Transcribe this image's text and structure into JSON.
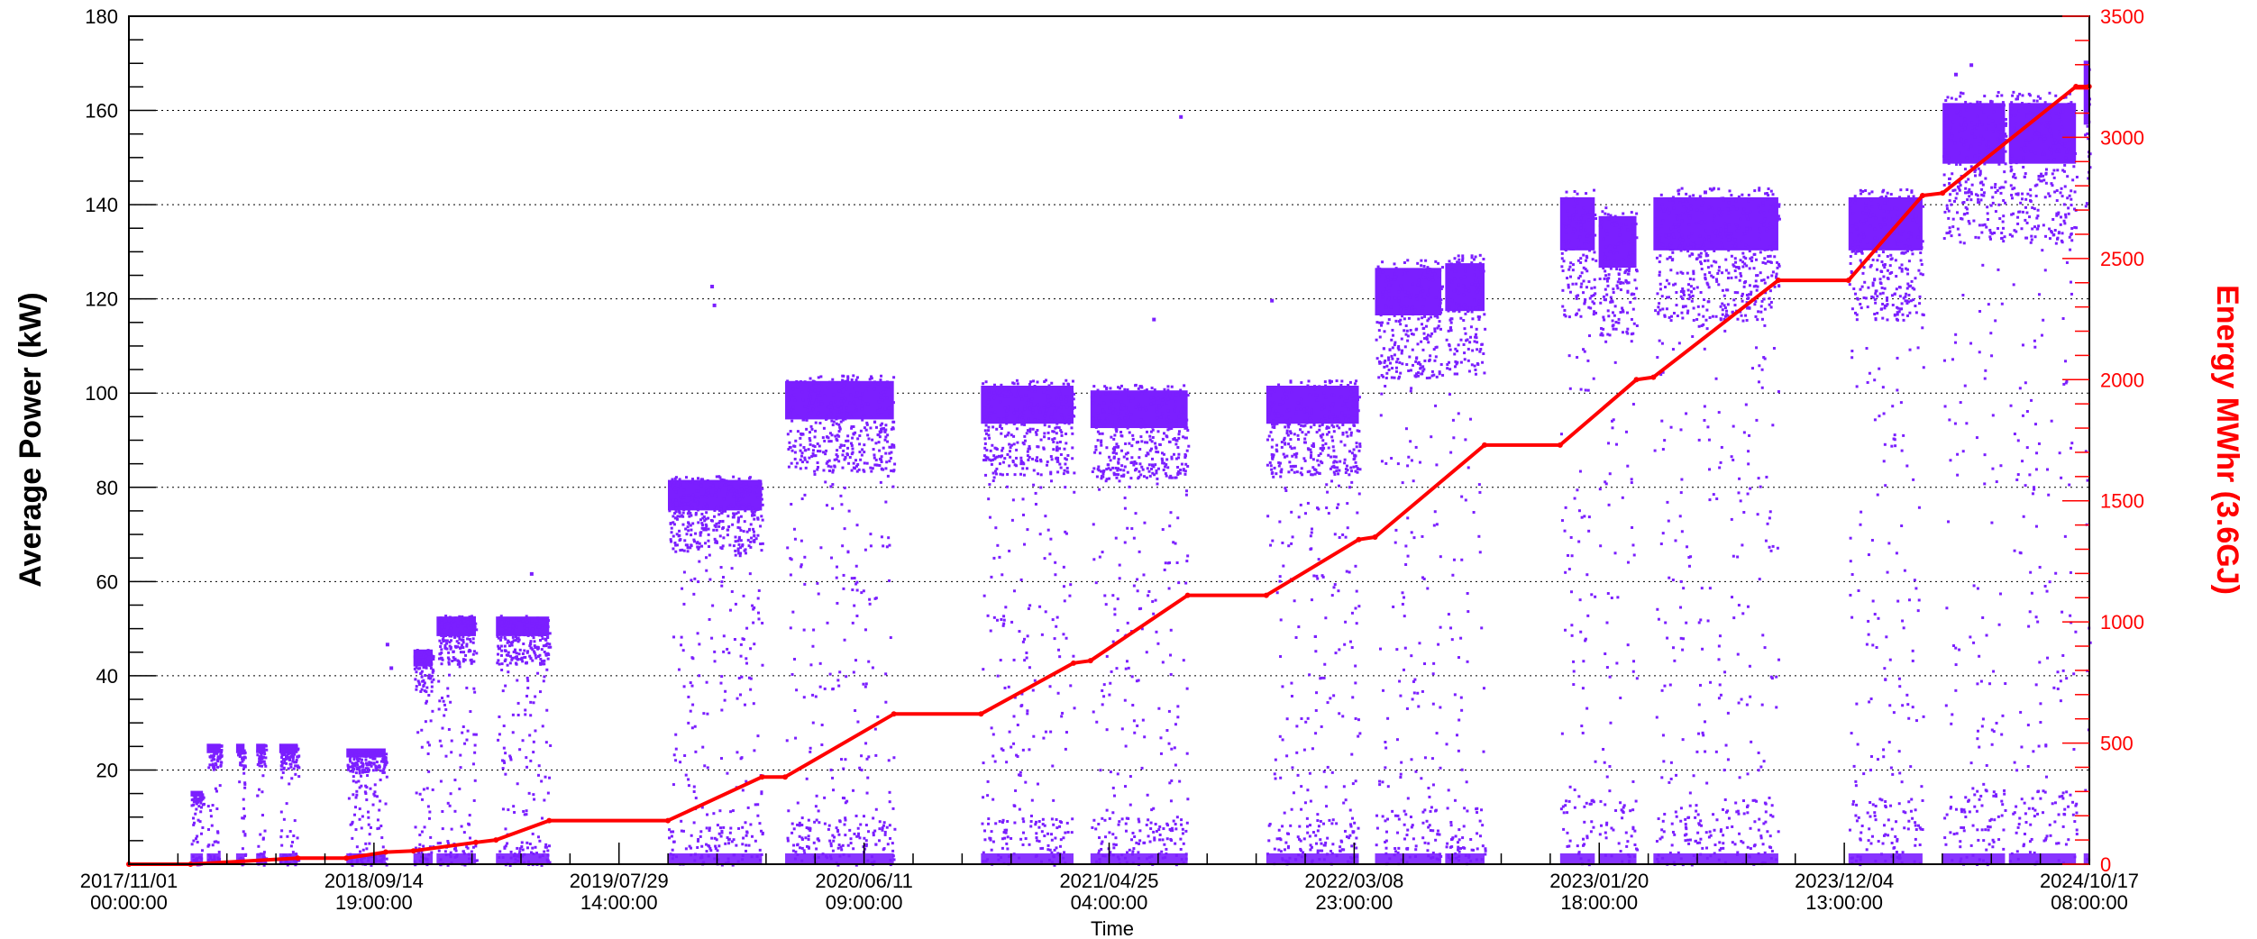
{
  "chart_data": {
    "type": "scatter",
    "title": "",
    "xlabel": "Time",
    "ylabel": "Average Power (kW)",
    "y2label": "Energy MWhr (3.6GJ)",
    "xlim": [
      "2017-11-01 00:00",
      "2024-10-17 08:00"
    ],
    "ylim": [
      0,
      180
    ],
    "y2lim": [
      0,
      3500
    ],
    "grid_y": true,
    "x_tick_labels": [
      {
        "date": "2017-11-01 00:00",
        "line1": "2017/11/01",
        "line2": "00:00:00"
      },
      {
        "date": "2018-09-14 19:00",
        "line1": "2018/09/14",
        "line2": "19:00:00"
      },
      {
        "date": "2019-07-29 14:00",
        "line1": "2019/07/29",
        "line2": "14:00:00"
      },
      {
        "date": "2020-06-11 09:00",
        "line1": "2020/06/11",
        "line2": "09:00:00"
      },
      {
        "date": "2021-04-25 04:00",
        "line1": "2021/04/25",
        "line2": "04:00:00"
      },
      {
        "date": "2022-03-08 23:00",
        "line1": "2022/03/08",
        "line2": "23:00:00"
      },
      {
        "date": "2023-01-20 18:00",
        "line1": "2023/01/20",
        "line2": "18:00:00"
      },
      {
        "date": "2023-12-04 13:00",
        "line1": "2023/12/04",
        "line2": "13:00:00"
      },
      {
        "date": "2024-10-17 08:00",
        "line1": "2024/10/17",
        "line2": "08:00:00"
      }
    ],
    "y_ticks": [
      20,
      40,
      60,
      80,
      100,
      120,
      140,
      160,
      180
    ],
    "y2_ticks": [
      0,
      500,
      1000,
      1500,
      2000,
      2500,
      3000,
      3500
    ],
    "power_runs": [
      {
        "start": "2018-01-20",
        "end": "2018-02-05",
        "level": 15
      },
      {
        "start": "2018-02-10",
        "end": "2018-02-28",
        "level": 25
      },
      {
        "start": "2018-03-20",
        "end": "2018-03-31",
        "level": 25
      },
      {
        "start": "2018-04-15",
        "end": "2018-04-27",
        "level": 25
      },
      {
        "start": "2018-05-15",
        "end": "2018-06-08",
        "level": 25
      },
      {
        "start": "2018-08-10",
        "end": "2018-09-30",
        "level": 24
      },
      {
        "start": "2018-11-05",
        "end": "2018-11-30",
        "level": 45
      },
      {
        "start": "2018-12-05",
        "end": "2019-01-25",
        "level": 52
      },
      {
        "start": "2019-02-20",
        "end": "2019-04-30",
        "level": 52
      },
      {
        "start": "2019-10-01",
        "end": "2020-01-31",
        "level": 81
      },
      {
        "start": "2020-03-01",
        "end": "2020-07-20",
        "level": 102
      },
      {
        "start": "2020-11-10",
        "end": "2021-03-10",
        "level": 101
      },
      {
        "start": "2021-04-01",
        "end": "2021-08-05",
        "level": 100
      },
      {
        "start": "2021-11-15",
        "end": "2022-03-15",
        "level": 101
      },
      {
        "start": "2022-04-05",
        "end": "2022-06-30",
        "level": 126
      },
      {
        "start": "2022-07-05",
        "end": "2022-08-25",
        "level": 127
      },
      {
        "start": "2022-12-01",
        "end": "2023-01-15",
        "level": 141
      },
      {
        "start": "2023-01-20",
        "end": "2023-03-10",
        "level": 137
      },
      {
        "start": "2023-04-01",
        "end": "2023-09-10",
        "level": 141
      },
      {
        "start": "2023-12-10",
        "end": "2024-03-15",
        "level": 141
      },
      {
        "start": "2024-04-10",
        "end": "2024-06-30",
        "level": 161
      },
      {
        "start": "2024-07-05",
        "end": "2024-09-30",
        "level": 161
      },
      {
        "start": "2024-10-10",
        "end": "2024-10-17",
        "level": 170
      }
    ],
    "power_outliers": [
      {
        "date": "2018-09-30",
        "value": 47
      },
      {
        "date": "2018-10-05",
        "value": 42
      },
      {
        "date": "2019-04-05",
        "value": 62
      },
      {
        "date": "2019-11-25",
        "value": 123
      },
      {
        "date": "2019-11-28",
        "value": 119
      },
      {
        "date": "2021-06-20",
        "value": 116
      },
      {
        "date": "2021-07-25",
        "value": 159
      },
      {
        "date": "2021-11-20",
        "value": 120
      },
      {
        "date": "2023-06-05",
        "value": 143
      },
      {
        "date": "2024-04-25",
        "value": 168
      },
      {
        "date": "2024-05-15",
        "value": 170
      }
    ],
    "energy_series": {
      "name": "",
      "color": "#ff0000",
      "points": [
        [
          "2017-11-01",
          0
        ],
        [
          "2018-01-20",
          0
        ],
        [
          "2018-06-08",
          25
        ],
        [
          "2018-08-10",
          25
        ],
        [
          "2018-09-30",
          50
        ],
        [
          "2018-11-05",
          55
        ],
        [
          "2019-01-25",
          90
        ],
        [
          "2019-02-20",
          100
        ],
        [
          "2019-04-30",
          180
        ],
        [
          "2019-10-01",
          180
        ],
        [
          "2020-01-31",
          360
        ],
        [
          "2020-03-01",
          360
        ],
        [
          "2020-07-20",
          620
        ],
        [
          "2020-11-10",
          620
        ],
        [
          "2021-03-10",
          830
        ],
        [
          "2021-04-01",
          840
        ],
        [
          "2021-08-05",
          1110
        ],
        [
          "2021-11-15",
          1110
        ],
        [
          "2022-03-15",
          1340
        ],
        [
          "2022-04-05",
          1350
        ],
        [
          "2022-08-25",
          1730
        ],
        [
          "2022-12-01",
          1730
        ],
        [
          "2023-03-10",
          2000
        ],
        [
          "2023-04-01",
          2010
        ],
        [
          "2023-09-10",
          2410
        ],
        [
          "2023-12-10",
          2410
        ],
        [
          "2024-03-15",
          2760
        ],
        [
          "2024-04-10",
          2770
        ],
        [
          "2024-09-30",
          3210
        ],
        [
          "2024-10-17",
          3210
        ]
      ]
    },
    "colors": {
      "power_points": "#7b1fff",
      "energy_line": "#ff0000",
      "right_axis": "#ff0000",
      "grid": "#000000"
    }
  }
}
